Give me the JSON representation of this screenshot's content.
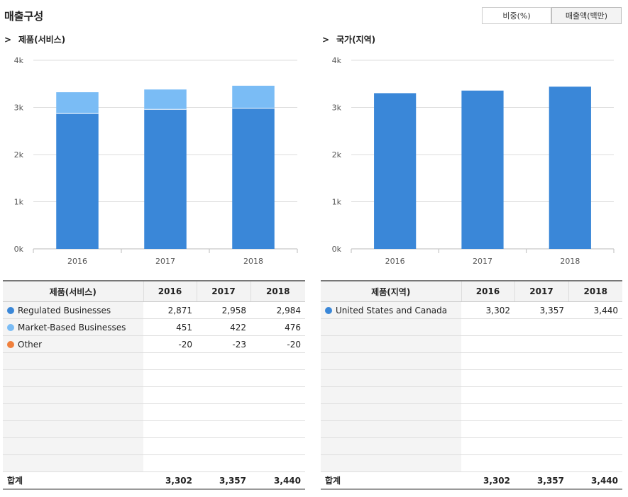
{
  "header": {
    "title": "매출구성",
    "toggle_percent": "비중(%)",
    "toggle_amount": "매출액(백만)"
  },
  "colors": {
    "regulated": "#3a87d8",
    "market": "#7abcf5",
    "other": "#f0803c",
    "us_canada": "#3a87d8",
    "grid": "#dddddd"
  },
  "left": {
    "section_title": "제품(서비스)",
    "arrow": ">",
    "table": {
      "header": [
        "제품(서비스)",
        "2016",
        "2017",
        "2018"
      ],
      "rows": [
        {
          "name": "Regulated Businesses",
          "values": [
            "2,871",
            "2,958",
            "2,984"
          ]
        },
        {
          "name": "Market-Based Businesses",
          "values": [
            "451",
            "422",
            "476"
          ]
        },
        {
          "name": "Other",
          "values": [
            "-20",
            "-23",
            "-20"
          ]
        }
      ],
      "total_label": "합계",
      "totals": [
        "3,302",
        "3,357",
        "3,440"
      ]
    }
  },
  "right": {
    "section_title": "국가(지역)",
    "arrow": ">",
    "table": {
      "header": [
        "제품(지역)",
        "2016",
        "2017",
        "2018"
      ],
      "rows": [
        {
          "name": "United States and Canada",
          "values": [
            "3,302",
            "3,357",
            "3,440"
          ]
        }
      ],
      "total_label": "합계",
      "totals": [
        "3,302",
        "3,357",
        "3,440"
      ]
    }
  },
  "chart_data": [
    {
      "type": "bar",
      "stacked": true,
      "categories": [
        "2016",
        "2017",
        "2018"
      ],
      "series": [
        {
          "name": "Regulated Businesses",
          "values": [
            2871,
            2958,
            2984
          ],
          "color": "#3a87d8"
        },
        {
          "name": "Market-Based Businesses",
          "values": [
            451,
            422,
            476
          ],
          "color": "#7abcf5"
        },
        {
          "name": "Other",
          "values": [
            -20,
            -23,
            -20
          ],
          "color": "#f0803c"
        }
      ],
      "ylim": [
        0,
        4000
      ],
      "yticks": [
        "0k",
        "1k",
        "2k",
        "3k",
        "4k"
      ],
      "grid": true
    },
    {
      "type": "bar",
      "stacked": false,
      "categories": [
        "2016",
        "2017",
        "2018"
      ],
      "series": [
        {
          "name": "United States and Canada",
          "values": [
            3302,
            3357,
            3440
          ],
          "color": "#3a87d8"
        }
      ],
      "ylim": [
        0,
        4000
      ],
      "yticks": [
        "0k",
        "1k",
        "2k",
        "3k",
        "4k"
      ],
      "grid": true
    }
  ]
}
